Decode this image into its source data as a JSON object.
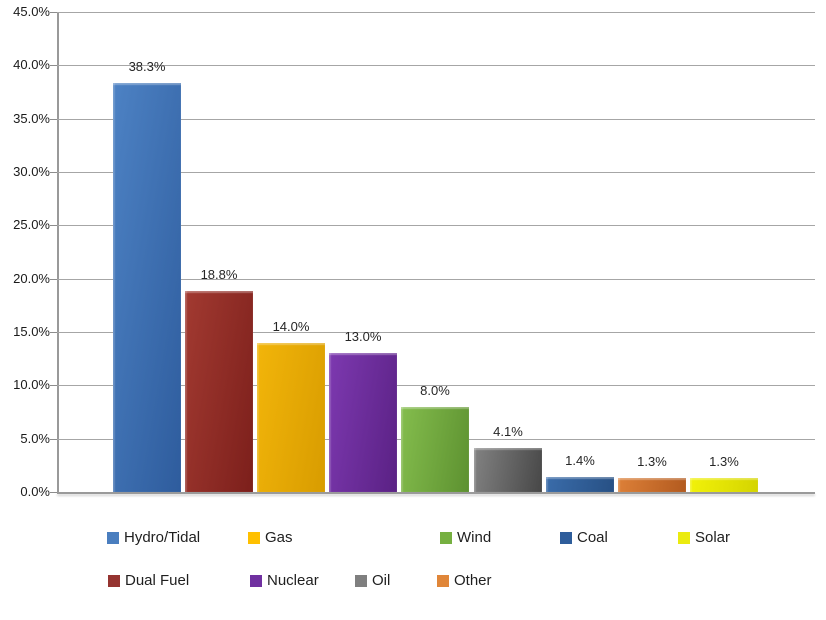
{
  "chart_data": {
    "type": "bar",
    "title": "",
    "xlabel": "",
    "ylabel": "",
    "ylim": [
      0,
      45
    ],
    "ytick_step": 5,
    "grid": true,
    "legend_position": "bottom",
    "ytick_labels": [
      "0.0%",
      "5.0%",
      "10.0%",
      "15.0%",
      "20.0%",
      "25.0%",
      "30.0%",
      "35.0%",
      "40.0%",
      "45.0%"
    ],
    "categories": [
      "Hydro/Tidal",
      "Dual Fuel",
      "Gas",
      "Nuclear",
      "Wind",
      "Oil",
      "Coal",
      "Other",
      "Solar"
    ],
    "values": [
      38.3,
      18.8,
      14.0,
      13.0,
      8.0,
      4.1,
      1.4,
      1.3,
      1.3
    ],
    "value_labels": [
      "38.3%",
      "18.8%",
      "14.0%",
      "13.0%",
      "8.0%",
      "4.1%",
      "1.4%",
      "1.3%",
      "1.3%"
    ],
    "series": [
      {
        "name": "Hydro/Tidal",
        "value": 38.3,
        "label": "38.3%",
        "color_light": "#4d82c4",
        "color_dark": "#2e5c9d",
        "legend_color": "#4a7ebf"
      },
      {
        "name": "Dual Fuel",
        "value": 18.8,
        "label": "18.8%",
        "color_light": "#a23a31",
        "color_dark": "#7c1f1b",
        "legend_color": "#953430"
      },
      {
        "name": "Gas",
        "value": 14.0,
        "label": "14.0%",
        "color_light": "#f2b50a",
        "color_dark": "#d89c00",
        "legend_color": "#ffc000"
      },
      {
        "name": "Nuclear",
        "value": 13.0,
        "label": "13.0%",
        "color_light": "#7d39b0",
        "color_dark": "#5a2184",
        "legend_color": "#7030a0"
      },
      {
        "name": "Wind",
        "value": 8.0,
        "label": "8.0%",
        "color_light": "#84bd4d",
        "color_dark": "#5d9130",
        "legend_color": "#76b041"
      },
      {
        "name": "Oil",
        "value": 4.1,
        "label": "4.1%",
        "color_light": "#828282",
        "color_dark": "#474747",
        "legend_color": "#7f7f7f"
      },
      {
        "name": "Coal",
        "value": 1.4,
        "label": "1.4%",
        "color_light": "#3a6caa",
        "color_dark": "#275084",
        "legend_color": "#2e5d9b"
      },
      {
        "name": "Other",
        "value": 1.3,
        "label": "1.3%",
        "color_light": "#dd8038",
        "color_dark": "#b25a1f",
        "legend_color": "#e08639"
      },
      {
        "name": "Solar",
        "value": 1.3,
        "label": "1.3%",
        "color_light": "#f2f209",
        "color_dark": "#d4d400",
        "legend_color": "#ebeb0f"
      }
    ],
    "legend_rows": [
      [
        "Hydro/Tidal",
        "Gas",
        "Wind",
        "Coal",
        "Solar"
      ],
      [
        "Dual Fuel",
        "Nuclear",
        "Oil",
        "Other"
      ]
    ]
  },
  "grid_color": "#a6a6a6",
  "axis_color": "#999999",
  "label_color": "#262626"
}
